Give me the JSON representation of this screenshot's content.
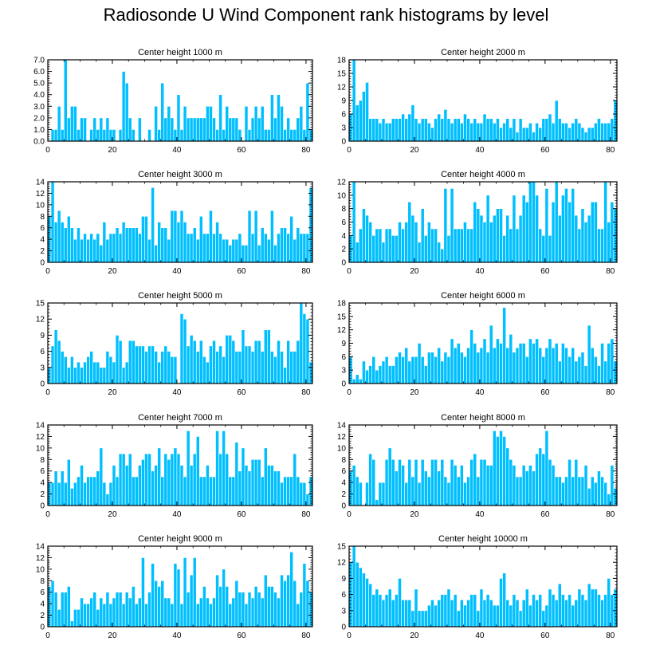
{
  "title": "Radiosonde U Wind Component rank histograms by level",
  "colors": {
    "bar": "#00bfff",
    "axis": "#000000"
  },
  "chart_data": [
    {
      "type": "bar",
      "title": "Center height 1000 m",
      "xlim": [
        0,
        82
      ],
      "ylim": [
        0,
        7
      ],
      "yticks": [
        "0.0",
        "1.0",
        "2.0",
        "3.0",
        "4.0",
        "5.0",
        "6.0",
        "7.0"
      ],
      "ytick_values": [
        0,
        1,
        2,
        3,
        4,
        5,
        6,
        7
      ],
      "xticks": [
        0,
        20,
        40,
        60,
        80
      ],
      "values": [
        0,
        1,
        1,
        3,
        1,
        7,
        2,
        3,
        3,
        1,
        2,
        2,
        0,
        1,
        2,
        1,
        2,
        1,
        2,
        1,
        1,
        0,
        1,
        6,
        5,
        2,
        1,
        0,
        2,
        0,
        0,
        1,
        0,
        3,
        1,
        5,
        2,
        3,
        2,
        1,
        4,
        1,
        3,
        2,
        2,
        2,
        2,
        2,
        2,
        3,
        3,
        2,
        1,
        4,
        1,
        3,
        2,
        2,
        2,
        1,
        0,
        3,
        1,
        2,
        3,
        2,
        3,
        1,
        1,
        4,
        2,
        4,
        3,
        1,
        2,
        1,
        1,
        2,
        3,
        1,
        5,
        1
      ]
    },
    {
      "type": "bar",
      "title": "Center height 2000 m",
      "xlim": [
        0,
        82
      ],
      "ylim": [
        0,
        18
      ],
      "yticks": [
        "0",
        "3",
        "6",
        "9",
        "12",
        "15",
        "18"
      ],
      "ytick_values": [
        0,
        3,
        6,
        9,
        12,
        15,
        18
      ],
      "xticks": [
        0,
        20,
        40,
        60,
        80
      ],
      "values": [
        6,
        18,
        8,
        9,
        11,
        13,
        5,
        5,
        5,
        4,
        5,
        4,
        4,
        5,
        5,
        5,
        6,
        5,
        6,
        8,
        5,
        4,
        5,
        5,
        4,
        3,
        5,
        6,
        5,
        7,
        5,
        4,
        5,
        5,
        4,
        6,
        5,
        4,
        5,
        4,
        4,
        6,
        5,
        5,
        4,
        5,
        3,
        4,
        5,
        3,
        5,
        2,
        5,
        3,
        3,
        4,
        2,
        4,
        3,
        5,
        5,
        6,
        4,
        9,
        5,
        4,
        4,
        3,
        4,
        5,
        4,
        3,
        2,
        3,
        3,
        4,
        5,
        4,
        4,
        4,
        5,
        9
      ]
    },
    {
      "type": "bar",
      "title": "Center height 3000 m",
      "xlim": [
        0,
        82
      ],
      "ylim": [
        0,
        14
      ],
      "yticks": [
        "0",
        "2",
        "4",
        "6",
        "8",
        "10",
        "12",
        "14"
      ],
      "ytick_values": [
        0,
        2,
        4,
        6,
        8,
        10,
        12,
        14
      ],
      "xticks": [
        0,
        20,
        40,
        60,
        80
      ],
      "values": [
        8,
        14,
        7,
        9,
        7,
        6,
        8,
        6,
        4,
        6,
        4,
        5,
        4,
        5,
        4,
        5,
        3,
        7,
        4,
        5,
        5,
        6,
        5,
        7,
        6,
        6,
        6,
        6,
        5,
        8,
        8,
        4,
        13,
        3,
        7,
        6,
        6,
        4,
        9,
        9,
        7,
        9,
        7,
        5,
        5,
        6,
        4,
        8,
        5,
        5,
        9,
        5,
        7,
        5,
        4,
        4,
        3,
        4,
        4,
        5,
        3,
        3,
        9,
        5,
        9,
        3,
        6,
        5,
        4,
        9,
        3,
        5,
        6,
        6,
        5,
        8,
        4,
        6,
        5,
        5,
        5,
        13
      ]
    },
    {
      "type": "bar",
      "title": "Center height 4000 m",
      "xlim": [
        0,
        82
      ],
      "ylim": [
        0,
        12
      ],
      "yticks": [
        "0",
        "2",
        "4",
        "6",
        "8",
        "10",
        "12"
      ],
      "ytick_values": [
        0,
        2,
        4,
        6,
        8,
        10,
        12
      ],
      "xticks": [
        0,
        20,
        40,
        60,
        80
      ],
      "values": [
        4,
        12,
        3,
        5,
        8,
        7,
        6,
        4,
        5,
        5,
        3,
        5,
        5,
        4,
        4,
        6,
        5,
        6,
        9,
        7,
        6,
        3,
        8,
        4,
        6,
        5,
        5,
        3,
        2,
        11,
        4,
        11,
        5,
        5,
        5,
        6,
        5,
        5,
        9,
        8,
        7,
        6,
        10,
        6,
        7,
        8,
        8,
        4,
        7,
        5,
        10,
        5,
        7,
        10,
        9,
        12,
        12,
        10,
        5,
        4,
        11,
        4,
        9,
        12,
        7,
        10,
        11,
        9,
        11,
        7,
        5,
        8,
        6,
        7,
        9,
        9,
        5,
        5,
        12,
        6,
        9,
        8
      ]
    },
    {
      "type": "bar",
      "title": "Center height 5000 m",
      "xlim": [
        0,
        82
      ],
      "ylim": [
        0,
        15
      ],
      "yticks": [
        "0",
        "3",
        "6",
        "9",
        "12",
        "15"
      ],
      "ytick_values": [
        0,
        3,
        6,
        9,
        12,
        15
      ],
      "xticks": [
        0,
        20,
        40,
        60,
        80
      ],
      "values": [
        3,
        7,
        10,
        8,
        6,
        5,
        3,
        5,
        3,
        4,
        3,
        4,
        5,
        6,
        4,
        4,
        3,
        3,
        6,
        5,
        4,
        9,
        8,
        3,
        4,
        8,
        8,
        7,
        7,
        7,
        6,
        7,
        7,
        6,
        4,
        6,
        7,
        6,
        5,
        5,
        0,
        13,
        12,
        7,
        9,
        8,
        6,
        8,
        5,
        4,
        7,
        8,
        6,
        7,
        5,
        9,
        9,
        8,
        6,
        6,
        10,
        7,
        7,
        6,
        8,
        8,
        6,
        10,
        10,
        6,
        5,
        8,
        6,
        3,
        8,
        6,
        6,
        8,
        15,
        13,
        12,
        4
      ]
    },
    {
      "type": "bar",
      "title": "Center height 6000 m",
      "xlim": [
        0,
        82
      ],
      "ylim": [
        0,
        18
      ],
      "yticks": [
        "0",
        "3",
        "6",
        "9",
        "12",
        "15",
        "18"
      ],
      "ytick_values": [
        0,
        3,
        6,
        9,
        12,
        15,
        18
      ],
      "xticks": [
        0,
        20,
        40,
        60,
        80
      ],
      "values": [
        6,
        1,
        2,
        1,
        5,
        3,
        4,
        6,
        3,
        4,
        5,
        6,
        4,
        4,
        6,
        7,
        6,
        8,
        5,
        6,
        6,
        9,
        6,
        4,
        7,
        7,
        6,
        8,
        5,
        7,
        6,
        10,
        8,
        9,
        7,
        6,
        8,
        12,
        9,
        7,
        8,
        10,
        7,
        13,
        8,
        10,
        9,
        17,
        8,
        11,
        7,
        8,
        9,
        9,
        6,
        10,
        9,
        10,
        8,
        6,
        8,
        10,
        8,
        9,
        5,
        9,
        8,
        6,
        8,
        5,
        6,
        7,
        4,
        13,
        8,
        6,
        4,
        9,
        5,
        9,
        10,
        5
      ]
    },
    {
      "type": "bar",
      "title": "Center height 7000 m",
      "xlim": [
        0,
        82
      ],
      "ylim": [
        0,
        14
      ],
      "yticks": [
        "0",
        "2",
        "4",
        "6",
        "8",
        "10",
        "12",
        "14"
      ],
      "ytick_values": [
        0,
        2,
        4,
        6,
        8,
        10,
        12,
        14
      ],
      "xticks": [
        0,
        20,
        40,
        60,
        80
      ],
      "values": [
        4,
        4,
        6,
        4,
        6,
        4,
        8,
        3,
        4,
        5,
        7,
        4,
        5,
        5,
        5,
        6,
        10,
        4,
        2,
        4,
        7,
        5,
        9,
        9,
        7,
        9,
        5,
        5,
        7,
        8,
        9,
        9,
        6,
        7,
        10,
        5,
        9,
        8,
        9,
        10,
        9,
        7,
        5,
        13,
        7,
        9,
        12,
        5,
        5,
        7,
        5,
        5,
        13,
        9,
        13,
        9,
        5,
        5,
        11,
        6,
        10,
        7,
        6,
        8,
        8,
        8,
        5,
        10,
        7,
        7,
        6,
        6,
        4,
        5,
        5,
        5,
        9,
        5,
        4,
        4,
        2,
        5
      ]
    },
    {
      "type": "bar",
      "title": "Center height 8000 m",
      "xlim": [
        0,
        82
      ],
      "ylim": [
        0,
        14
      ],
      "yticks": [
        "0",
        "2",
        "4",
        "6",
        "8",
        "10",
        "12",
        "14"
      ],
      "ytick_values": [
        0,
        2,
        4,
        6,
        8,
        10,
        12,
        14
      ],
      "xticks": [
        0,
        20,
        40,
        60,
        80
      ],
      "values": [
        6,
        7,
        5,
        4,
        0,
        4,
        9,
        8,
        1,
        4,
        4,
        8,
        10,
        8,
        6,
        8,
        7,
        4,
        8,
        5,
        8,
        4,
        8,
        6,
        5,
        8,
        8,
        6,
        8,
        5,
        4,
        8,
        7,
        5,
        7,
        4,
        5,
        8,
        9,
        5,
        8,
        8,
        7,
        7,
        13,
        12,
        13,
        12,
        10,
        8,
        7,
        5,
        5,
        7,
        6,
        7,
        6,
        9,
        10,
        9,
        13,
        8,
        7,
        5,
        5,
        4,
        5,
        8,
        5,
        8,
        5,
        5,
        7,
        3,
        5,
        4,
        6,
        5,
        4,
        2,
        7,
        3
      ]
    },
    {
      "type": "bar",
      "title": "Center height 9000 m",
      "xlim": [
        0,
        82
      ],
      "ylim": [
        0,
        14
      ],
      "yticks": [
        "0",
        "2",
        "4",
        "6",
        "8",
        "10",
        "12",
        "14"
      ],
      "ytick_values": [
        0,
        2,
        4,
        6,
        8,
        10,
        12,
        14
      ],
      "xticks": [
        0,
        20,
        40,
        60,
        80
      ],
      "values": [
        7,
        8,
        6,
        3,
        6,
        6,
        7,
        1,
        3,
        3,
        5,
        4,
        4,
        5,
        6,
        3,
        5,
        4,
        6,
        4,
        5,
        6,
        6,
        4,
        6,
        5,
        7,
        4,
        5,
        12,
        4,
        6,
        11,
        8,
        7,
        8,
        5,
        5,
        4,
        11,
        10,
        4,
        12,
        6,
        9,
        12,
        4,
        5,
        7,
        5,
        4,
        5,
        9,
        7,
        10,
        7,
        4,
        5,
        8,
        6,
        6,
        4,
        6,
        5,
        7,
        6,
        5,
        9,
        7,
        7,
        6,
        5,
        9,
        8,
        9,
        13,
        8,
        4,
        6,
        11,
        8,
        6
      ]
    },
    {
      "type": "bar",
      "title": "Center height 10000 m",
      "xlim": [
        0,
        82
      ],
      "ylim": [
        0,
        15
      ],
      "yticks": [
        "0",
        "3",
        "6",
        "9",
        "12",
        "15"
      ],
      "ytick_values": [
        0,
        3,
        6,
        9,
        12,
        15
      ],
      "xticks": [
        0,
        20,
        40,
        60,
        80
      ],
      "values": [
        12,
        15,
        12,
        11,
        10,
        9,
        8,
        6,
        7,
        6,
        5,
        6,
        7,
        5,
        6,
        9,
        5,
        5,
        5,
        3,
        7,
        3,
        3,
        3,
        4,
        5,
        4,
        5,
        6,
        6,
        7,
        5,
        6,
        3,
        5,
        4,
        5,
        6,
        6,
        3,
        7,
        5,
        6,
        5,
        4,
        4,
        9,
        10,
        5,
        4,
        6,
        5,
        3,
        5,
        7,
        4,
        6,
        5,
        6,
        3,
        4,
        7,
        6,
        5,
        8,
        6,
        5,
        6,
        4,
        5,
        7,
        6,
        5,
        8,
        7,
        7,
        6,
        5,
        6,
        9,
        6,
        7
      ]
    }
  ]
}
